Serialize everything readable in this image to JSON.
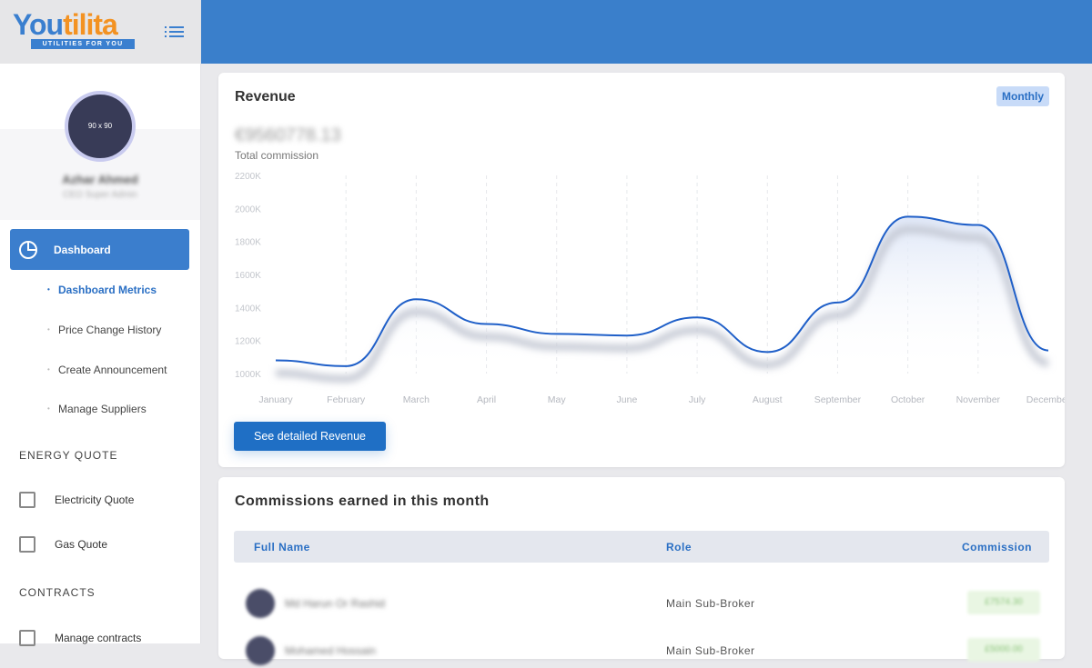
{
  "brand": {
    "name_part1": "You",
    "name_part2": "tilita",
    "tagline": "UTILITIES FOR YOU"
  },
  "profile": {
    "avatar_text": "90 x 90",
    "name": "Azhar Ahmed",
    "role": "CEO Super Admin"
  },
  "nav": {
    "dashboard": "Dashboard",
    "subitems": [
      "Dashboard Metrics",
      "Price Change History",
      "Create Announcement",
      "Manage Suppliers"
    ],
    "energy_section": "ENERGY QUOTE",
    "energy_items": [
      "Electricity Quote",
      "Gas Quote"
    ],
    "contracts_section": "CONTRACTS",
    "contracts_items": [
      "Manage contracts"
    ]
  },
  "revenue": {
    "title": "Revenue",
    "period": "Monthly",
    "total": "€9560778.13",
    "total_label": "Total commission",
    "button": "See detailed Revenue"
  },
  "chart_data": {
    "type": "area",
    "categories": [
      "January",
      "February",
      "March",
      "April",
      "May",
      "June",
      "July",
      "August",
      "September",
      "October",
      "November",
      "December"
    ],
    "values": [
      1080,
      1045,
      1450,
      1300,
      1240,
      1230,
      1340,
      1130,
      1430,
      1950,
      1900,
      1140
    ],
    "yunit": "K",
    "ylim": [
      1000,
      2200
    ],
    "yticks": [
      1000,
      1200,
      1400,
      1600,
      1800,
      2000,
      2200
    ],
    "grid": "vertical-dashed",
    "color": "#1f5fc8"
  },
  "commissions": {
    "title": "Commissions earned in this month",
    "columns": [
      "Full Name",
      "Role",
      "Commission"
    ],
    "rows": [
      {
        "name": "Md Harun Or Rashid",
        "role": "Main Sub-Broker",
        "commission": "£7574.30"
      },
      {
        "name": "Mohamed Hossain",
        "role": "Main Sub-Broker",
        "commission": "£5000.00"
      }
    ]
  },
  "colors": {
    "primary": "#3a7fcb",
    "accent": "#f39222"
  }
}
